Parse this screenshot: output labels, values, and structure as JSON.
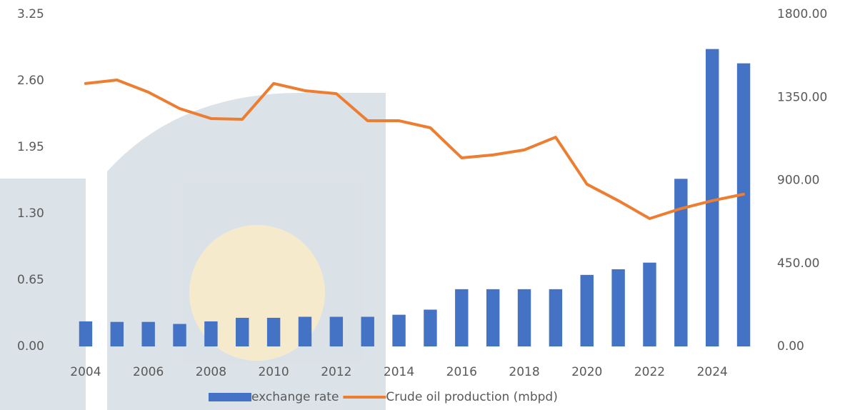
{
  "chart_data": {
    "type": "bar_line",
    "categories": [
      "2004",
      null,
      "2006",
      null,
      "2008",
      null,
      "2010",
      null,
      "2012",
      null,
      "2014",
      null,
      "2016",
      null,
      "2018",
      null,
      "2020",
      null,
      "2022",
      null,
      "2024",
      null
    ],
    "series": [
      {
        "name": "exchange rate",
        "type": "bar",
        "color": "#4472c4",
        "axis": "y",
        "values": [
          0.245,
          0.24,
          0.24,
          0.22,
          0.245,
          0.28,
          0.28,
          0.29,
          0.29,
          0.29,
          0.31,
          0.36,
          0.56,
          0.56,
          0.56,
          0.56,
          0.7,
          0.755,
          0.82,
          1.64,
          2.91,
          2.77
        ]
      },
      {
        "name": "Crude oil production (mbpd)",
        "type": "line",
        "color": "#ed7d31",
        "axis": "y2",
        "values": [
          1425,
          1444,
          1378,
          1289,
          1235,
          1231,
          1425,
          1386,
          1370,
          1223,
          1223,
          1185,
          1022,
          1038,
          1065,
          1134,
          879,
          790,
          693,
          747,
          790,
          825
        ]
      }
    ],
    "ylim": [
      0,
      3.25
    ],
    "yticks": [
      {
        "value": 0,
        "label": "0.00"
      },
      0.65,
      {
        "value": 1.3,
        "label": "1.30"
      },
      1.95,
      {
        "value": 2.6,
        "label": "2.60"
      },
      3.25
    ],
    "y2lim": [
      0,
      1800
    ],
    "y2ticks": [
      {
        "value": 0,
        "label": "0.00"
      },
      {
        "value": 450,
        "label": "450.00"
      },
      {
        "value": 900,
        "label": "900.00"
      },
      {
        "value": 1350,
        "label": "1350.00"
      },
      {
        "value": 1800,
        "label": "1800.00"
      }
    ],
    "grid": false,
    "legend": "bottom"
  }
}
